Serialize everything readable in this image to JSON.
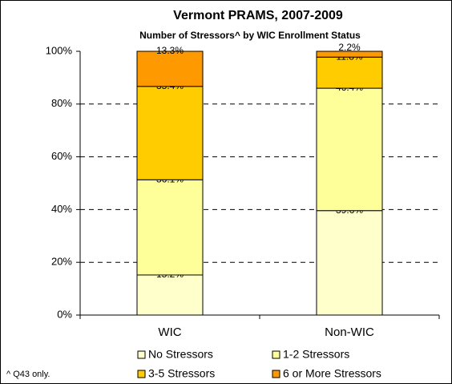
{
  "chart_data": {
    "type": "stacked_bar",
    "title": "Vermont PRAMS, 2007-2009",
    "subtitle": "Number of Stressors^ by WIC Enrollment Status",
    "footnote": "^ Q43 only.",
    "categories": [
      "WIC",
      "Non-WIC"
    ],
    "series": [
      {
        "name": "No Stressors",
        "color": "#ffffcc",
        "values": [
          15.2,
          39.6
        ],
        "value_labels": [
          "15.2%",
          "39.6%"
        ]
      },
      {
        "name": "1-2 Stressors",
        "color": "#ffff99",
        "values": [
          36.1,
          46.4
        ],
        "value_labels": [
          "36.1%",
          "46.4%"
        ]
      },
      {
        "name": "3-5 Stressors",
        "color": "#ffcc00",
        "values": [
          35.4,
          11.8
        ],
        "value_labels": [
          "35.4%",
          "11.8%"
        ]
      },
      {
        "name": "6 or More Stressors",
        "color": "#ff9900",
        "values": [
          13.3,
          2.2
        ],
        "value_labels": [
          "13.3%",
          "2.2%"
        ]
      }
    ],
    "ylim": [
      0,
      100
    ],
    "yticks": [
      {
        "value": 0,
        "label": "0%"
      },
      {
        "value": 20,
        "label": "20%"
      },
      {
        "value": 40,
        "label": "40%"
      },
      {
        "value": 60,
        "label": "60%"
      },
      {
        "value": 80,
        "label": "80%"
      },
      {
        "value": 100,
        "label": "100%"
      }
    ],
    "grid": true,
    "legend": "bottom"
  }
}
